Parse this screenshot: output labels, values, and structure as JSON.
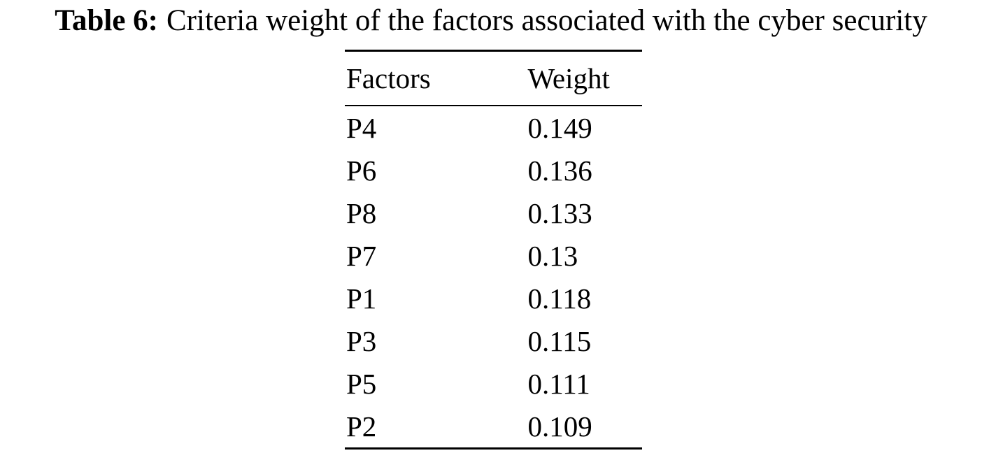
{
  "caption": {
    "label": "Table 6:",
    "text": "Criteria weight of the factors associated with the cyber security"
  },
  "table": {
    "headers": [
      "Factors",
      "Weight"
    ],
    "rows": [
      {
        "factor": "P4",
        "weight": "0.149"
      },
      {
        "factor": "P6",
        "weight": "0.136"
      },
      {
        "factor": "P8",
        "weight": "0.133"
      },
      {
        "factor": "P7",
        "weight": "0.13"
      },
      {
        "factor": "P1",
        "weight": "0.118"
      },
      {
        "factor": "P3",
        "weight": "0.115"
      },
      {
        "factor": "P5",
        "weight": "0.111"
      },
      {
        "factor": "P2",
        "weight": "0.109"
      }
    ]
  }
}
